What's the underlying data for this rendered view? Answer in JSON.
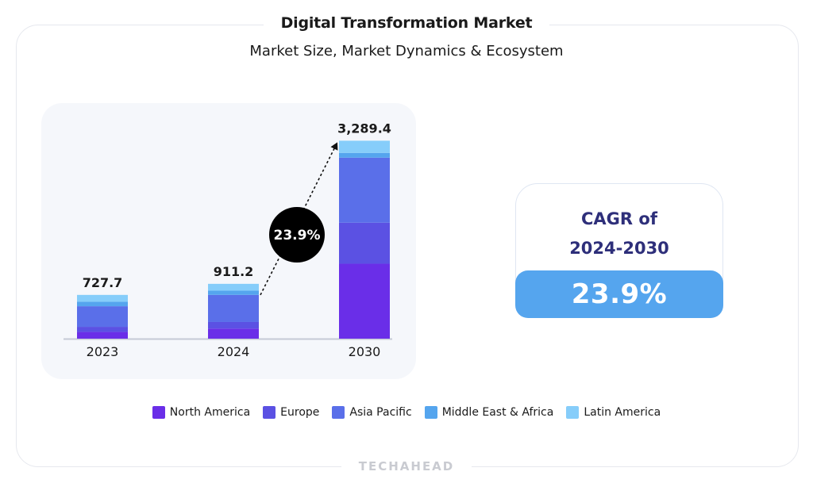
{
  "header": {
    "title": "Digital Transformation Market",
    "subtitle": "Market Size, Market Dynamics & Ecosystem"
  },
  "chart_data": {
    "type": "bar",
    "stacked": true,
    "categories": [
      "2023",
      "2024",
      "2030"
    ],
    "totals": [
      727.7,
      911.2,
      3289.4
    ],
    "total_labels": [
      "727.7",
      "911.2",
      "3,289.4"
    ],
    "series": [
      {
        "name": "North America",
        "color": "#6a2ee8",
        "values": [
          111,
          167,
          1245
        ]
      },
      {
        "name": "Europe",
        "color": "#5b51e3",
        "values": [
          86,
          110,
          682
        ]
      },
      {
        "name": "Asia Pacific",
        "color": "#5a6fe9",
        "values": [
          342,
          450,
          1080
        ]
      },
      {
        "name": "Middle East & Africa",
        "color": "#55a5ee",
        "values": [
          75,
          70,
          80
        ]
      },
      {
        "name": "Latin America",
        "color": "#86cdfa",
        "values": [
          113,
          114,
          202
        ]
      }
    ],
    "ylim": [
      0,
      3400
    ],
    "grid": false,
    "legend_position": "bottom",
    "annotation": {
      "text": "23.9%",
      "from": "2024",
      "to": "2030"
    }
  },
  "cagr": {
    "title": "CAGR of\n2024-2030",
    "value": "23.9%"
  },
  "brand": "TECHAHEAD",
  "colors": {
    "accent": "#55a5ee",
    "cagr_title": "#2e2f7a",
    "annotation_bubble": "#000000"
  }
}
